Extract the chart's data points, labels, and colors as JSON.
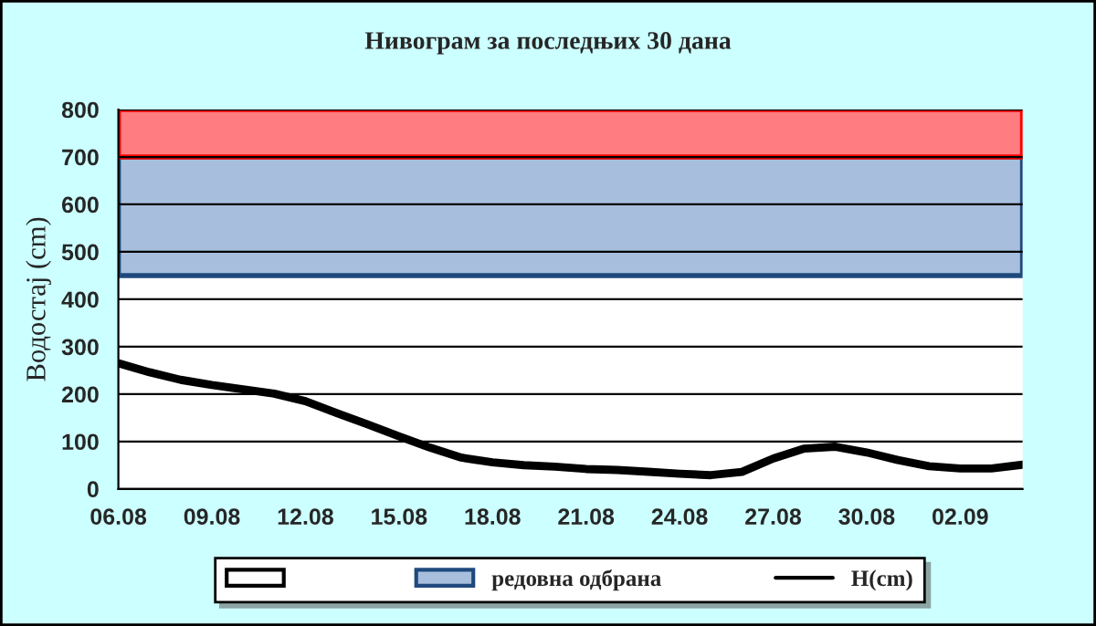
{
  "chart_data": {
    "type": "line",
    "title": "Нивограм за последњих 30 дана",
    "ylabel": "Водостај (cm)",
    "categories": [
      "06.08",
      null,
      null,
      "09.08",
      null,
      null,
      "12.08",
      null,
      null,
      "15.08",
      null,
      null,
      "18.08",
      null,
      null,
      "21.08",
      null,
      null,
      "24.08",
      null,
      null,
      "27.08",
      null,
      null,
      "30.08",
      null,
      null,
      "02.09",
      null,
      null
    ],
    "series": [
      {
        "name": "H(cm)",
        "color": "#000000",
        "values": [
          265,
          246,
          230,
          219,
          210,
          201,
          185,
          160,
          136,
          111,
          87,
          66,
          56,
          50,
          47,
          42,
          40,
          36,
          32,
          29,
          36,
          64,
          85,
          89,
          77,
          61,
          48,
          43,
          43,
          51
        ]
      }
    ],
    "bands": [
      {
        "axis": "y",
        "from": 0,
        "to": 450,
        "color": "#ffffff"
      },
      {
        "axis": "y",
        "from": 450,
        "to": 700,
        "label": "редовна одбрана",
        "color": "#a7bfdc"
      },
      {
        "axis": "y",
        "from": 700,
        "to": 800,
        "color": "#ff7c80"
      }
    ],
    "ylim": [
      0,
      800
    ],
    "yticks": [
      0,
      100,
      200,
      300,
      400,
      500,
      600,
      700,
      800
    ],
    "grid": "y",
    "legend": "bottom",
    "marker": "none",
    "line_style": "solid"
  }
}
